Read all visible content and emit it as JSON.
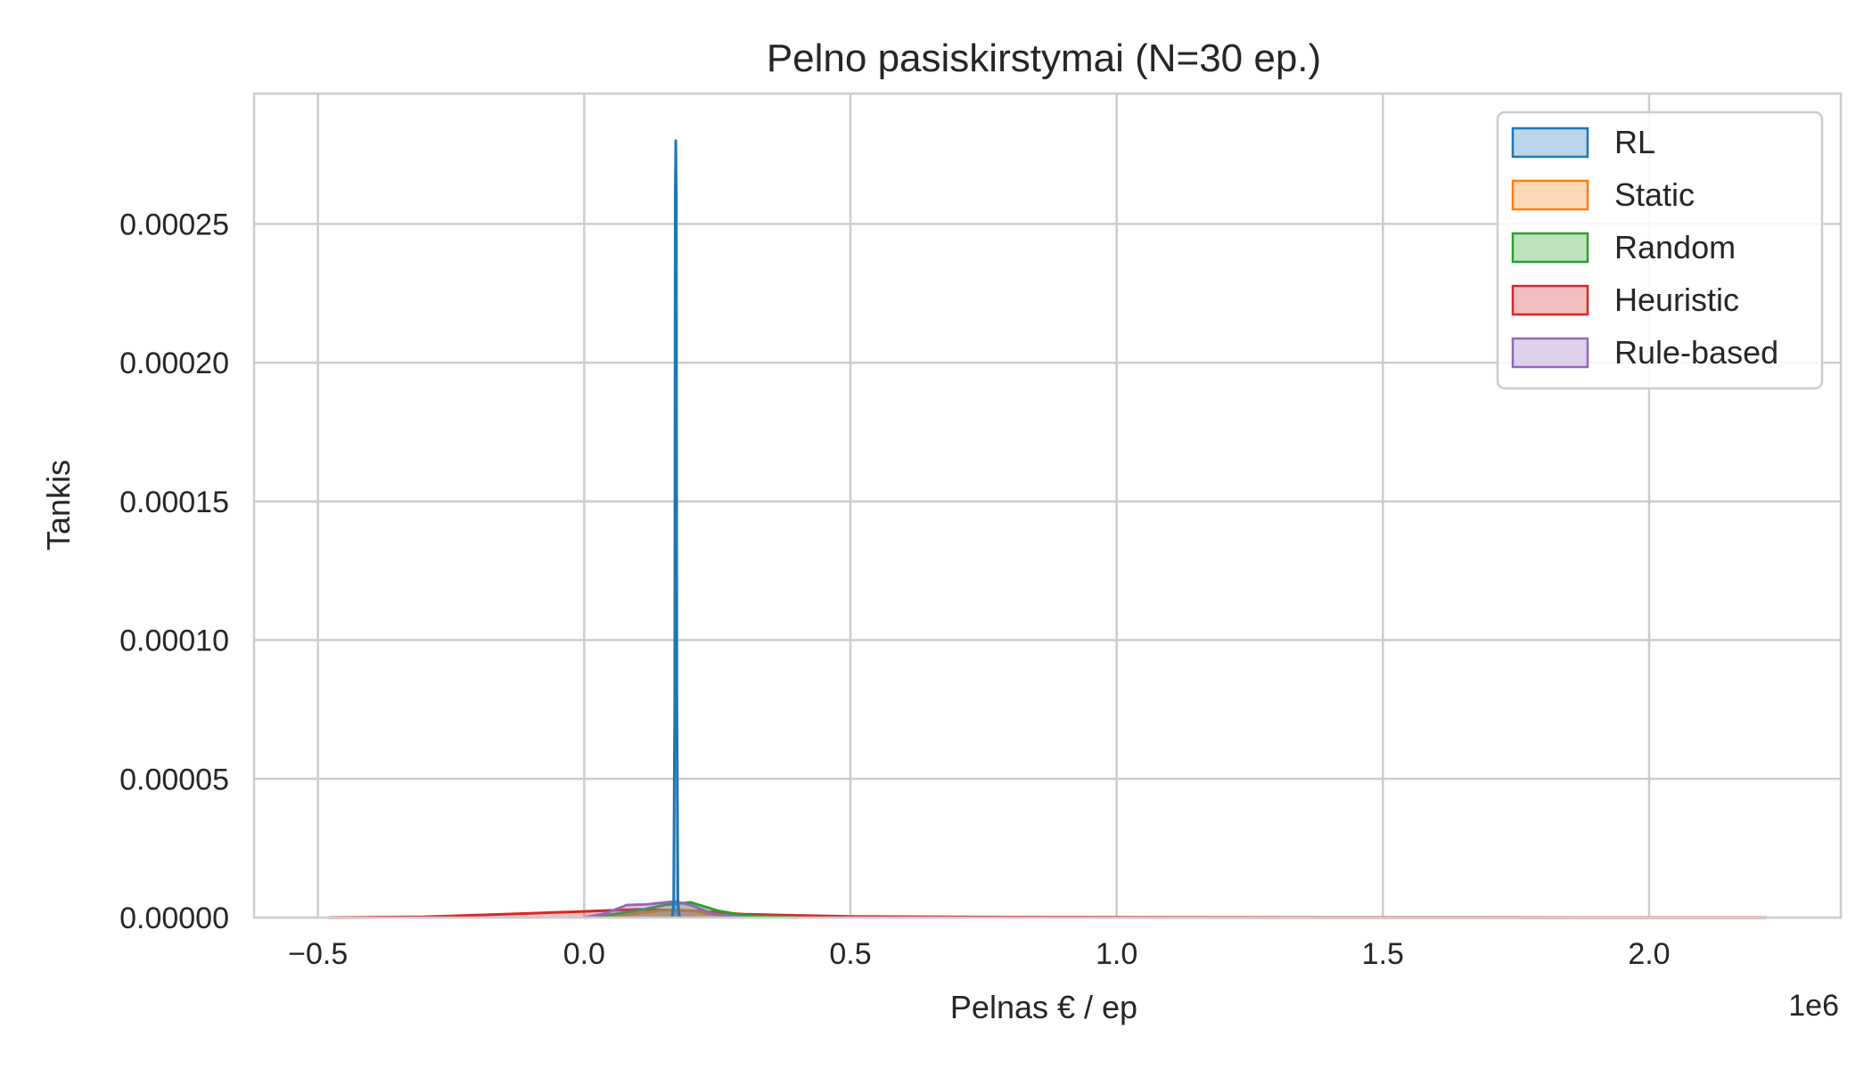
{
  "chart_data": {
    "type": "area",
    "kind": "kde",
    "title": "Pelno pasiskirstymai (N=30 ep.)",
    "xlabel": "Pelnas € / ep",
    "ylabel": "Tankis",
    "x_offset_label": "1e6",
    "xlim": [
      -0.62,
      2.36
    ],
    "ylim": [
      0,
      0.000297
    ],
    "xticks": [
      -0.5,
      0.0,
      0.5,
      1.0,
      1.5,
      2.0
    ],
    "xtick_labels": [
      "−0.5",
      "0.0",
      "0.5",
      "1.0",
      "1.5",
      "2.0"
    ],
    "yticks": [
      0.0,
      5e-05,
      0.0001,
      0.00015,
      0.0002,
      0.00025
    ],
    "ytick_labels": [
      "0.00000",
      "0.00005",
      "0.00010",
      "0.00015",
      "0.00020",
      "0.00025"
    ],
    "grid": true,
    "legend_position": "top-right",
    "series": [
      {
        "name": "RL",
        "color": "#1f77b4",
        "x": [
          0.165,
          0.168,
          0.17,
          0.171,
          0.172,
          0.173,
          0.174,
          0.176,
          0.179
        ],
        "y": [
          0,
          5e-06,
          8e-05,
          0.00026,
          0.00028,
          0.00026,
          8e-05,
          5e-06,
          0
        ]
      },
      {
        "name": "Static",
        "color": "#ff7f0e",
        "x": [
          0.05,
          0.1,
          0.14,
          0.17,
          0.2,
          0.24,
          0.28
        ],
        "y": [
          0,
          1.5e-06,
          2.5e-06,
          2.8e-06,
          2.5e-06,
          1.2e-06,
          0
        ]
      },
      {
        "name": "Random",
        "color": "#2ca02c",
        "x": [
          0.0,
          0.05,
          0.1,
          0.15,
          0.2,
          0.25,
          0.3,
          0.4
        ],
        "y": [
          0,
          1e-06,
          2.5e-06,
          4.5e-06,
          5.5e-06,
          2.5e-06,
          8e-07,
          0
        ]
      },
      {
        "name": "Heuristic",
        "color": "#d62728",
        "x": [
          -0.48,
          -0.3,
          -0.15,
          0.0,
          0.1,
          0.2,
          0.3,
          0.5,
          0.8,
          1.2,
          1.6,
          2.0,
          2.22
        ],
        "y": [
          0,
          3e-07,
          1.2e-06,
          2.2e-06,
          3e-06,
          2.5e-06,
          1.2e-06,
          4e-07,
          1.5e-07,
          6e-08,
          3e-08,
          1e-08,
          0
        ]
      },
      {
        "name": "Rule-based",
        "color": "#9467bd",
        "x": [
          0.0,
          0.04,
          0.08,
          0.12,
          0.17,
          0.2,
          0.24,
          0.3
        ],
        "y": [
          0,
          1.5e-06,
          4.5e-06,
          4.8e-06,
          5.8e-06,
          4.5e-06,
          1.5e-06,
          0
        ]
      }
    ]
  }
}
